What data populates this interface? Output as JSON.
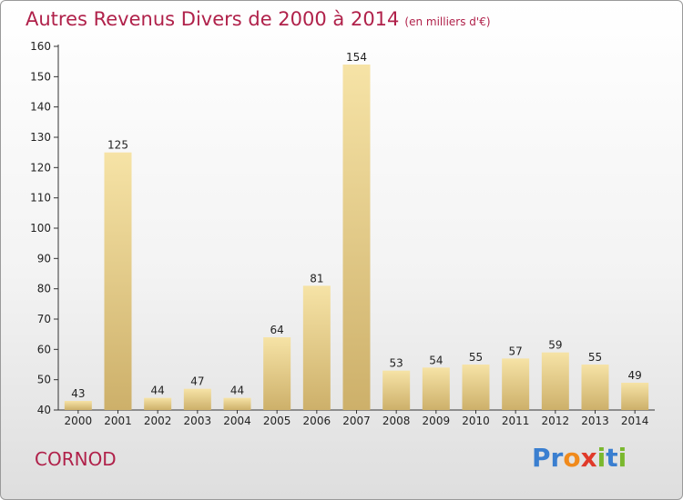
{
  "title": "Autres Revenus Divers de 2000 à 2014",
  "title_unit": "(en milliers d'€)",
  "commune": "CORNOD",
  "logo": {
    "letters": [
      "P",
      "r",
      "o",
      "x",
      "i",
      "t",
      "i"
    ],
    "colors": [
      "#3a7fd0",
      "#3a7fd0",
      "#f08a1c",
      "#e03a2a",
      "#7ab82e",
      "#3a7fd0",
      "#7ab82e"
    ]
  },
  "colors": {
    "title": "#b0214a",
    "bar_light": "#f6e3a6",
    "bar_dark": "#cdb06a"
  },
  "chart_data": {
    "type": "bar",
    "categories": [
      "2000",
      "2001",
      "2002",
      "2003",
      "2004",
      "2005",
      "2006",
      "2007",
      "2008",
      "2009",
      "2010",
      "2011",
      "2012",
      "2013",
      "2014"
    ],
    "values": [
      43,
      125,
      44,
      47,
      44,
      64,
      81,
      154,
      53,
      54,
      55,
      57,
      59,
      55,
      49
    ],
    "ylim": [
      40,
      160
    ],
    "yticks": [
      40,
      50,
      60,
      70,
      80,
      90,
      100,
      110,
      120,
      130,
      140,
      150,
      160
    ],
    "grid": false,
    "data_labels": true
  }
}
